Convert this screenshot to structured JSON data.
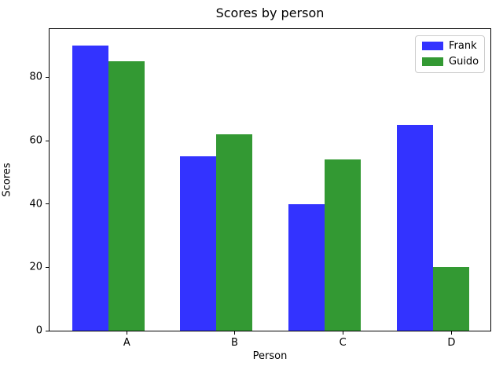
{
  "chart_data": {
    "type": "bar",
    "title": "Scores by person",
    "xlabel": "Person",
    "ylabel": "Scores",
    "categories": [
      "A",
      "B",
      "C",
      "D"
    ],
    "series": [
      {
        "name": "Frank",
        "color": "#3333ff",
        "values": [
          90,
          55,
          40,
          65
        ]
      },
      {
        "name": "Guido",
        "color": "#339933",
        "values": [
          85,
          62,
          54,
          20
        ]
      }
    ],
    "yticks": [
      0,
      20,
      40,
      60,
      80
    ],
    "ylim": [
      0,
      95.25
    ],
    "grid": false,
    "legend_position": "upper right"
  }
}
